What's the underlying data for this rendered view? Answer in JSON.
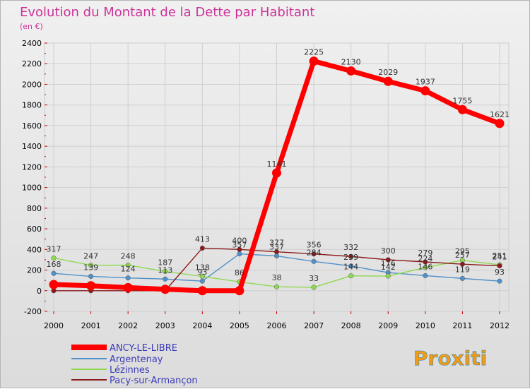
{
  "chart_data": {
    "type": "line",
    "title": "Evolution du Montant de la Dette par Habitant",
    "subtitle": "(en €)",
    "xlabel": "",
    "ylabel": "",
    "x": [
      "2000",
      "2001",
      "2002",
      "2003",
      "2004",
      "2005",
      "2006",
      "2007",
      "2008",
      "2009",
      "2010",
      "2011",
      "2012"
    ],
    "ylim": [
      -200,
      2400
    ],
    "yticks": [
      "-200",
      "0",
      "200",
      "400",
      "600",
      "800",
      "1000",
      "1200",
      "1400",
      "1600",
      "1800",
      "2000",
      "2200",
      "2400"
    ],
    "grid": true,
    "legend_position": "bottom-left",
    "series": [
      {
        "name": "ANCY-LE-LIBRE",
        "color": "#ff0000",
        "values": [
          60,
          48,
          30,
          14,
          0,
          0,
          1141,
          2225,
          2130,
          2029,
          1937,
          1755,
          1621
        ],
        "labels": [
          "",
          "",
          "",
          "",
          "",
          "",
          "1141",
          "2225",
          "2130",
          "2029",
          "1937",
          "1755",
          "1621"
        ]
      },
      {
        "name": "Argentenay",
        "color": "#4f91c9",
        "values": [
          168,
          139,
          124,
          113,
          93,
          357,
          337,
          284,
          239,
          176,
          146,
          119,
          93
        ],
        "labels": [
          "168",
          "139",
          "124",
          "113",
          "93",
          "357",
          "337",
          "284",
          "239",
          "176",
          "146",
          "119",
          "93"
        ]
      },
      {
        "name": "Lézinnes",
        "color": "#8fd94f",
        "values": [
          317,
          247,
          248,
          187,
          138,
          86,
          38,
          33,
          144,
          142,
          224,
          295,
          251
        ],
        "labels": [
          "317",
          "247",
          "248",
          "187",
          "138",
          "86",
          "38",
          "33",
          "144",
          "142",
          "224",
          "295",
          "251"
        ]
      },
      {
        "name": "Pacy-sur-Armançon",
        "color": "#8b1a1a",
        "values": [
          0,
          0,
          0,
          0,
          413,
          400,
          377,
          356,
          332,
          300,
          279,
          257,
          241
        ],
        "labels": [
          "",
          "",
          "",
          "",
          "413",
          "400",
          "377",
          "356",
          "332",
          "300",
          "279",
          "257",
          "241"
        ]
      }
    ]
  },
  "branding": {
    "logo_text": "Proxiti"
  }
}
